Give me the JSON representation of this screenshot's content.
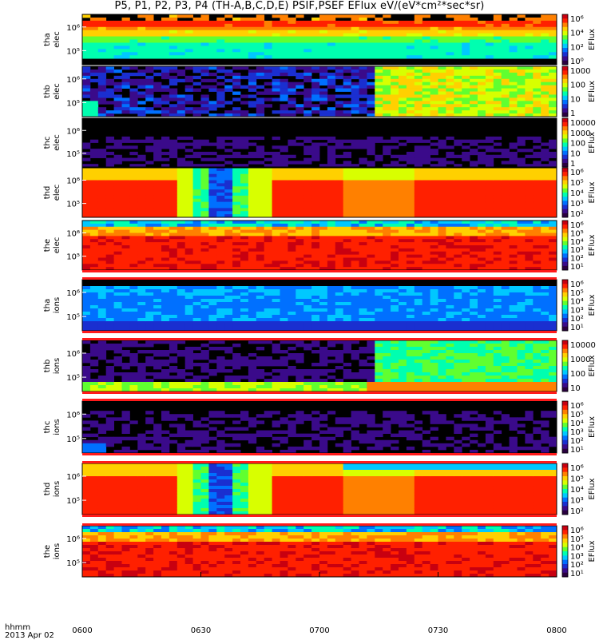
{
  "title": "P5, P1, P2, P3, P4 (TH-A,B,C,D,E) PSIF,PSEF EFlux eV/(eV*cm²*sec*sr)",
  "time_axis": {
    "label_top": "hhmm",
    "label_date": "2013 Apr 02",
    "ticks": [
      "0600",
      "0630",
      "0700",
      "0730",
      "0800"
    ]
  },
  "colors": {
    "rainbow": [
      "#2a0040",
      "#3a0a8a",
      "#1a2fd0",
      "#0070ff",
      "#00c8ff",
      "#00ffb0",
      "#60ff30",
      "#d8ff00",
      "#ffd000",
      "#ff8000",
      "#ff2000",
      "#c80010"
    ],
    "background": "#000000",
    "frame": "#000000"
  },
  "chart_data": [
    {
      "type": "heatmap",
      "probe": "tha",
      "species": "elec",
      "ylabel": "tha\nelec",
      "yticks": [
        "10⁵",
        "10⁶"
      ],
      "colorbar_label": "EFlux",
      "colorbar_ticks": [
        "10⁶",
        "10⁴",
        "10²",
        "10⁰"
      ],
      "pattern": "bands",
      "levels": [
        9,
        10,
        9,
        8,
        6,
        5,
        5,
        5,
        0
      ]
    },
    {
      "type": "heatmap",
      "probe": "thb",
      "species": "elec",
      "ylabel": "thb\nelec",
      "yticks": [
        "10⁵",
        "10⁶"
      ],
      "colorbar_label": "EFlux",
      "colorbar_ticks": [
        "1000",
        "100",
        "10",
        "1"
      ],
      "pattern": "noise_switch",
      "switch_time": "0713"
    },
    {
      "type": "heatmap",
      "probe": "thc",
      "species": "elec",
      "ylabel": "thc\nelec",
      "yticks": [
        "10⁵",
        "10⁶"
      ],
      "colorbar_label": "EFlux",
      "colorbar_ticks": [
        "10000",
        "1000",
        "100",
        "10",
        "1"
      ],
      "pattern": "sparse"
    },
    {
      "type": "heatmap",
      "probe": "thd",
      "species": "elec",
      "ylabel": "thd\nelec",
      "yticks": [
        "10⁵",
        "10⁶"
      ],
      "colorbar_label": "EFlux",
      "colorbar_ticks": [
        "10⁶",
        "10⁵",
        "10⁴",
        "10³",
        "10²"
      ],
      "pattern": "gap",
      "gap_time": "0635"
    },
    {
      "type": "heatmap",
      "probe": "the",
      "species": "elec",
      "ylabel": "the\nelec",
      "yticks": [
        "10⁵",
        "10⁶"
      ],
      "colorbar_label": "EFlux",
      "colorbar_ticks": [
        "10⁶",
        "10⁵",
        "10⁴",
        "10³",
        "10²",
        "10¹"
      ],
      "pattern": "red"
    },
    {
      "type": "heatmap",
      "probe": "tha",
      "species": "ions",
      "ylabel": "tha\nions",
      "yticks": [
        "10⁵",
        "10⁶"
      ],
      "colorbar_label": "EFlux",
      "colorbar_ticks": [
        "10⁶",
        "10⁵",
        "10⁴",
        "10³",
        "10²",
        "10¹"
      ],
      "pattern": "blue"
    },
    {
      "type": "heatmap",
      "probe": "thb",
      "species": "ions",
      "ylabel": "thb\nions",
      "yticks": [
        "10⁵",
        "10⁶"
      ],
      "colorbar_label": "EFlux",
      "colorbar_ticks": [
        "10000",
        "1000",
        "100",
        "10"
      ],
      "pattern": "noise_switch_ions",
      "switch_time": "0713"
    },
    {
      "type": "heatmap",
      "probe": "thc",
      "species": "ions",
      "ylabel": "thc\nions",
      "yticks": [
        "10⁵",
        "10⁶"
      ],
      "colorbar_label": "EFlux",
      "colorbar_ticks": [
        "10⁶",
        "10⁵",
        "10⁴",
        "10³",
        "10²",
        "10¹"
      ],
      "pattern": "sparse_ions"
    },
    {
      "type": "heatmap",
      "probe": "thd",
      "species": "ions",
      "ylabel": "thd\nions",
      "yticks": [
        "10⁵",
        "10⁶"
      ],
      "colorbar_label": "EFlux",
      "colorbar_ticks": [
        "10⁶",
        "10⁵",
        "10⁴",
        "10³",
        "10²"
      ],
      "pattern": "gap_ions",
      "gap_time": "0635"
    },
    {
      "type": "heatmap",
      "probe": "the",
      "species": "ions",
      "ylabel": "the\nions",
      "yticks": [
        "10⁵",
        "10⁶"
      ],
      "colorbar_label": "EFlux",
      "colorbar_ticks": [
        "10⁶",
        "10⁵",
        "10⁴",
        "10³",
        "10²",
        "10¹"
      ],
      "pattern": "red_ions"
    }
  ]
}
